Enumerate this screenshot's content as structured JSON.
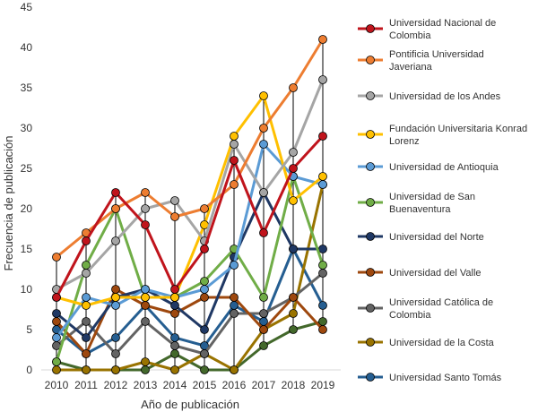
{
  "chart_data": {
    "type": "line",
    "title": "",
    "xlabel": "Año de publicación",
    "ylabel": "Frecuencia de publicación",
    "ylim": [
      0,
      45
    ],
    "y_ticks": [
      0,
      5,
      10,
      15,
      20,
      25,
      30,
      35,
      40,
      45
    ],
    "x": [
      "2010",
      "2011",
      "2012",
      "2013",
      "2014",
      "2015",
      "2016",
      "2017",
      "2018",
      "2019"
    ],
    "grid": false,
    "legend_position": "right",
    "series": [
      {
        "name": "Universidad Nacional de Colombia",
        "color": "#C0141C",
        "values": [
          9,
          16,
          22,
          18,
          10,
          15,
          26,
          17,
          25,
          29
        ]
      },
      {
        "name": "Pontificia Universidad Javeriana",
        "color": "#ED7D31",
        "values": [
          14,
          17,
          20,
          22,
          19,
          20,
          23,
          30,
          35,
          41
        ]
      },
      {
        "name": "Universidad de los Andes",
        "color": "#A5A5A5",
        "values": [
          10,
          12,
          16,
          20,
          21,
          16,
          28,
          22,
          27,
          36
        ]
      },
      {
        "name": "Fundación Universitaria Konrad Lorenz",
        "color": "#FFC000",
        "values": [
          9,
          8,
          9,
          9,
          9,
          18,
          29,
          34,
          21,
          24
        ]
      },
      {
        "name": "Universidad de Antioquia",
        "color": "#5B9BD5",
        "values": [
          4,
          9,
          8,
          10,
          9,
          10,
          13,
          28,
          24,
          23
        ]
      },
      {
        "name": "Universidad de San Buenaventura",
        "color": "#70AD47",
        "values": [
          1,
          13,
          20,
          9,
          9,
          11,
          15,
          9,
          24,
          13
        ]
      },
      {
        "name": "Universidad del Norte",
        "color": "#1F3864",
        "values": [
          7,
          4,
          9,
          10,
          8,
          5,
          14,
          22,
          15,
          15
        ]
      },
      {
        "name": "Universidad del Valle",
        "color": "#9E480E",
        "values": [
          6,
          2,
          10,
          8,
          7,
          9,
          9,
          5,
          9,
          5
        ]
      },
      {
        "name": "Universidad Católica de Colombia",
        "color": "#636363",
        "values": [
          3,
          6,
          2,
          6,
          3,
          2,
          7,
          7,
          9,
          12
        ]
      },
      {
        "name": "Universidad de la Costa",
        "color": "#997300",
        "values": [
          0,
          0,
          0,
          1,
          0,
          2,
          0,
          5,
          7,
          23
        ]
      },
      {
        "name": "Universidad Santo Tomás",
        "color": "#255E91",
        "values": [
          5,
          2,
          4,
          8,
          4,
          3,
          8,
          6,
          15,
          8
        ]
      },
      {
        "name": "",
        "color": "#43682B",
        "values": [
          1,
          0,
          0,
          0,
          2,
          0,
          0,
          3,
          5,
          6
        ]
      }
    ]
  }
}
